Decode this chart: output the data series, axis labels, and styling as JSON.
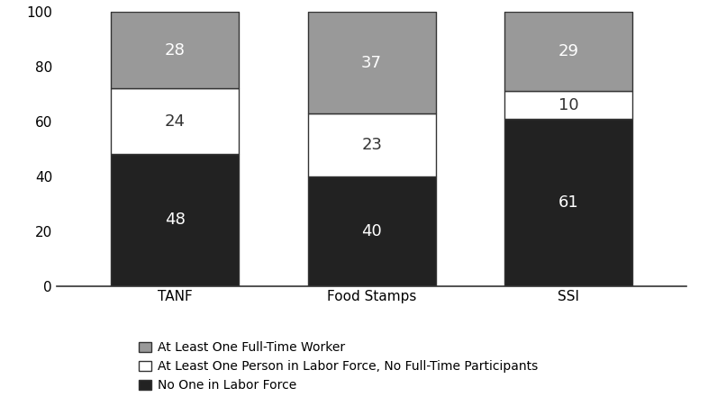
{
  "categories": [
    "TANF",
    "Food Stamps",
    "SSI"
  ],
  "series": {
    "no_one": {
      "label": "No One in Labor Force",
      "values": [
        48,
        40,
        61
      ],
      "color": "#222222"
    },
    "part_time": {
      "label": "At Least One Person in Labor Force, No Full-Time Participants",
      "values": [
        24,
        23,
        10
      ],
      "color": "#ffffff"
    },
    "full_time": {
      "label": "At Least One Full-Time Worker",
      "values": [
        28,
        37,
        29
      ],
      "color": "#999999"
    }
  },
  "ylim": [
    0,
    100
  ],
  "yticks": [
    0,
    20,
    40,
    60,
    80,
    100
  ],
  "bar_width": 0.65,
  "bar_edge_color": "#333333",
  "label_color_dark": "#ffffff",
  "label_color_light": "#333333",
  "label_fontsize": 13,
  "tick_fontsize": 11,
  "legend_fontsize": 10,
  "background_color": "#ffffff"
}
